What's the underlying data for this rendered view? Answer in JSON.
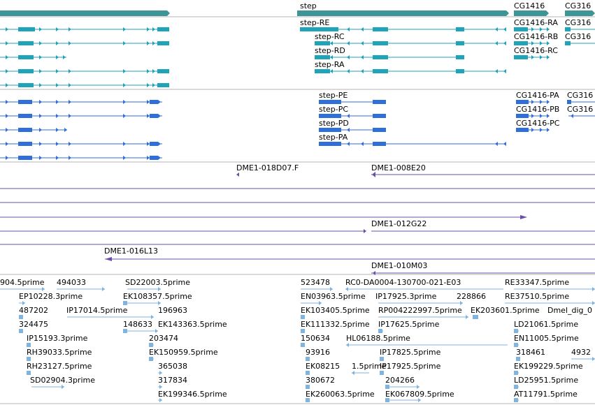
{
  "colors": {
    "gene": "#3e9595",
    "transcript": "#1ea3b9",
    "cds": "#2f6fd9",
    "bac": "#6a4fa8",
    "est": "#7fb3e0",
    "divider": "#b5b5b5"
  },
  "gene_labels": [
    "step",
    "CG1416",
    "CG316"
  ],
  "transcript_labels": [
    "step-RE",
    "step-RC",
    "step-RD",
    "step-RA",
    "CG1416-RA",
    "CG316",
    "CG1416-RB",
    "CG316",
    "CG1416-RC"
  ],
  "cds_labels": [
    "step-PE",
    "step-PC",
    "step-PD",
    "step-PA",
    "CG1416-PA",
    "CG316",
    "CG1416-PB",
    "CG316",
    "CG1416-PC"
  ],
  "bac_labels": [
    "DME1-018D07.F",
    "DME1-008E20",
    "DME1-012G22",
    "DME1-016L13",
    "DME1-010M03"
  ],
  "est_labels": [
    "904.5prime",
    "494033",
    "SD22003.5prime",
    "523478",
    "RC0-DA0004-130700-021-E03",
    "RE33347.5prime",
    "EP10228.3prime",
    "EK108357.5prime",
    "EN03963.5prime",
    "IP17925.3prime",
    "228866",
    "RE37510.5prime",
    "487202",
    "IP17014.5prime",
    "196963",
    "EK103405.5prime",
    "RP004222997.5prime",
    "EK203601.5prime",
    "Dmel_dig_0",
    "324475",
    "148633",
    "EK143363.5prime",
    "EK111332.5prime",
    "IP17625.5prime",
    "LD21061.5prime",
    "203474",
    "150634",
    "HL06188.5prime",
    "EN11005.5prime",
    "IP15193.3prime",
    "EK150959.5prime",
    "93916",
    "IP17825.5prime",
    "318461",
    "4932",
    "RH39033.5prime",
    "365038",
    "EK08215",
    "1.5prime",
    "IP17925.5prime",
    "EK199229.5prime",
    "RH23127.5prime",
    "317834",
    "380672",
    "204266",
    "LD25951.5prime",
    "SD02904.3prime",
    "EK199346.5prime",
    "EK260063.5prime",
    "EK067809.5prime",
    "AT11791.5prime"
  ]
}
